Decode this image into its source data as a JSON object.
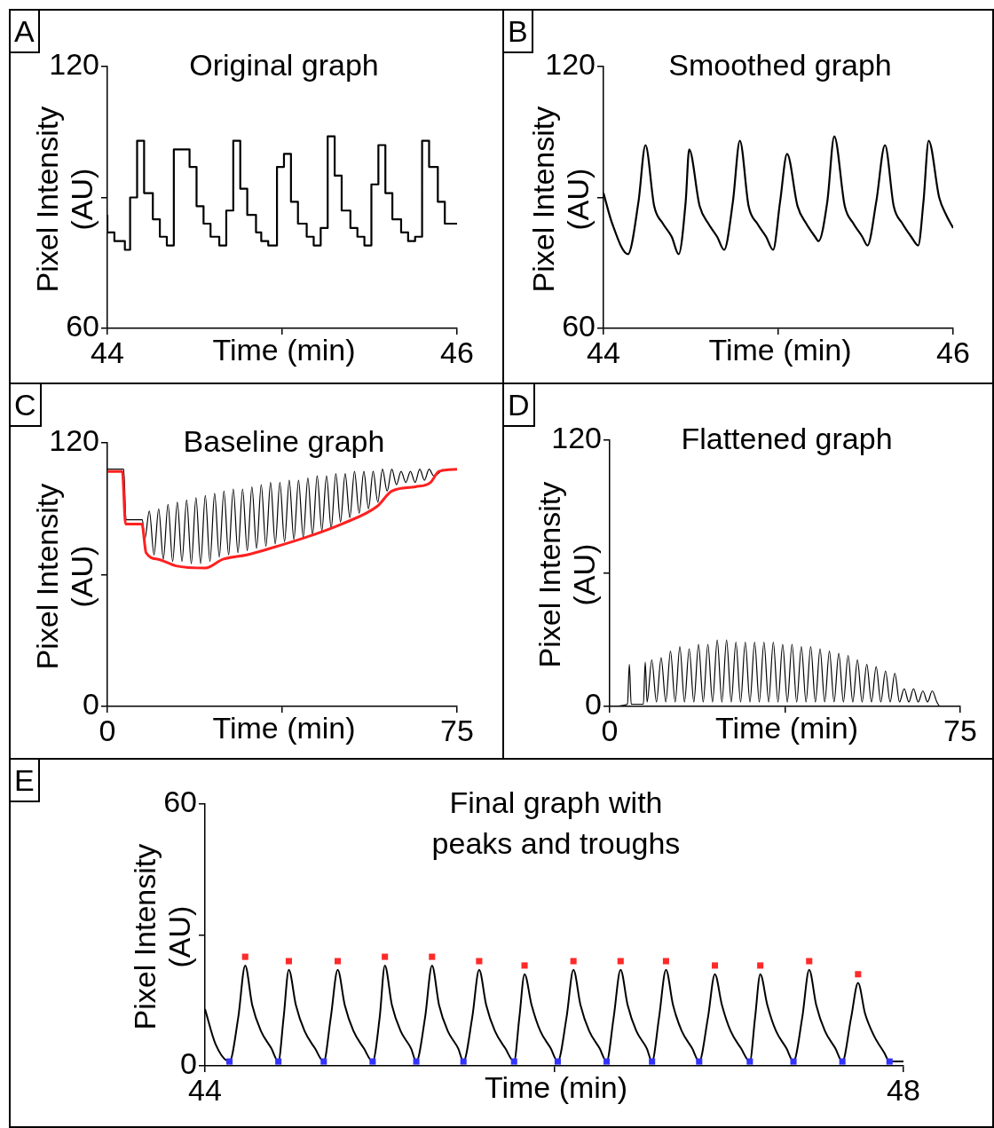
{
  "chart_data": [
    {
      "type": "step",
      "title": "Original graph",
      "xlabel": "Time (min)",
      "ylabel": "Pixel Intensity (AU)",
      "annotations": [
        "A"
      ],
      "xlim": [
        44,
        46
      ],
      "ylim": [
        60,
        120
      ],
      "xticks": [
        44,
        {
          "value": 45,
          "label": null
        },
        46
      ],
      "yticks": [
        60,
        {
          "value": 90,
          "label": null
        },
        120
      ],
      "x": [
        44.0,
        44.04,
        44.1,
        44.13,
        44.17,
        44.21,
        44.26,
        44.3,
        44.34,
        44.38,
        44.47,
        44.51,
        44.55,
        44.59,
        44.64,
        44.68,
        44.72,
        44.76,
        44.8,
        44.85,
        44.88,
        44.92,
        44.97,
        45.01,
        45.05,
        45.09,
        45.14,
        45.18,
        45.22,
        45.26,
        45.3,
        45.34,
        45.39,
        45.43,
        45.47,
        45.51,
        45.55,
        45.59,
        45.63,
        45.68,
        45.72,
        45.76,
        45.8,
        45.84,
        45.89,
        45.93,
        45.96,
        46.0
      ],
      "series": [
        {
          "color": "#000000",
          "values": [
            86,
            82,
            80,
            78,
            90,
            103,
            91,
            85,
            81,
            79,
            101,
            97,
            88,
            84,
            81,
            79,
            87,
            103,
            92,
            86,
            82,
            80,
            79,
            97,
            100,
            89,
            84,
            81,
            79,
            83,
            104,
            95,
            87,
            83,
            81,
            79,
            93,
            102,
            91,
            85,
            82,
            80,
            81,
            103,
            97,
            89,
            84,
            84
          ]
        }
      ]
    },
    {
      "type": "line",
      "title": "Smoothed graph",
      "xlabel": "Time (min)",
      "ylabel": "Pixel Intensity (AU)",
      "annotations": [
        "B"
      ],
      "xlim": [
        44,
        46
      ],
      "ylim": [
        60,
        120
      ],
      "xticks": [
        44,
        {
          "value": 45,
          "label": null
        },
        46
      ],
      "yticks": [
        60,
        {
          "value": 90,
          "label": null
        },
        120
      ],
      "x": [
        44.0,
        44.05,
        44.14,
        44.2,
        44.24,
        44.29,
        44.34,
        44.39,
        44.43,
        44.47,
        44.49,
        44.55,
        44.6,
        44.65,
        44.69,
        44.74,
        44.78,
        44.83,
        44.88,
        44.93,
        44.97,
        45.01,
        45.05,
        45.11,
        45.16,
        45.21,
        45.23,
        45.28,
        45.32,
        45.38,
        45.43,
        45.48,
        45.51,
        45.56,
        45.61,
        45.66,
        45.71,
        45.76,
        45.8,
        45.83,
        45.86,
        45.92,
        45.96,
        46.0
      ],
      "series": [
        {
          "color": "#000000",
          "values": [
            91,
            84,
            77,
            89,
            102,
            88,
            84,
            81,
            77,
            89,
            101,
            88,
            84,
            81,
            78,
            89,
            103,
            88,
            84,
            81,
            78,
            89,
            100,
            88,
            84,
            81,
            80,
            89,
            104,
            88,
            84,
            81,
            79,
            89,
            102,
            88,
            84,
            81,
            79,
            89,
            103,
            90,
            86,
            83
          ]
        }
      ]
    },
    {
      "type": "line",
      "title": "Baseline graph",
      "xlabel": "Time (min)",
      "ylabel": "Pixel Intensity (AU)",
      "annotations": [
        "C"
      ],
      "xlim": [
        0,
        75
      ],
      "ylim": [
        0,
        120
      ],
      "xticks": [
        0,
        {
          "value": 37.5,
          "label": null
        },
        75
      ],
      "yticks": [
        0,
        {
          "value": 60,
          "label": null
        },
        120
      ],
      "series": [
        {
          "color": "#000000",
          "x": [
            0,
            3.5,
            4,
            7.5,
            8,
            9,
            10,
            11,
            12,
            13,
            14,
            15,
            16,
            17,
            18,
            19,
            20,
            21,
            22,
            23,
            24,
            25,
            26,
            27,
            28,
            29,
            30,
            31,
            32,
            33,
            34,
            35,
            36,
            37,
            38,
            39,
            40,
            41,
            42,
            43,
            44,
            45,
            46,
            47,
            48,
            49,
            50,
            51,
            52,
            53,
            54,
            55,
            56,
            57,
            58,
            59,
            60,
            61,
            62,
            63,
            64,
            65,
            66,
            67,
            68,
            69,
            70,
            72
          ],
          "values": [
            108,
            108,
            85,
            85,
            76,
            89,
            69,
            90,
            67,
            92,
            66,
            93,
            66,
            94,
            65,
            95,
            65,
            96,
            66,
            97,
            68,
            98,
            69,
            99,
            70,
            99,
            71,
            100,
            72,
            101,
            73,
            102,
            74,
            102,
            75,
            103,
            76,
            103,
            77,
            104,
            78,
            105,
            80,
            105,
            81,
            106,
            84,
            106,
            86,
            107,
            88,
            107,
            90,
            107,
            93,
            108,
            98,
            108,
            101,
            107,
            102,
            107,
            102,
            108,
            103,
            108,
            105,
            108
          ]
        },
        {
          "color": "#ff2020",
          "x": [
            0,
            3.2,
            3.9,
            7.4,
            8.3,
            10.9,
            14.7,
            21,
            24.8,
            29.9,
            35,
            42.6,
            50.2,
            57.8,
            61,
            66.1,
            69.3,
            71.1,
            75
          ],
          "values": [
            107,
            107,
            83,
            83,
            70,
            67,
            64,
            63,
            67,
            69,
            72,
            77,
            83,
            91,
            98,
            100,
            102,
            107,
            108
          ]
        }
      ]
    },
    {
      "type": "line",
      "title": "Flattened graph",
      "xlabel": "Time (min)",
      "ylabel": "Pixel Intensity (AU)",
      "annotations": [
        "D"
      ],
      "xlim": [
        0,
        75
      ],
      "ylim": [
        0,
        120
      ],
      "xticks": [
        0,
        {
          "value": 37.5,
          "label": null
        },
        75
      ],
      "yticks": [
        0,
        {
          "value": 60,
          "label": null
        },
        120
      ],
      "series": [
        {
          "color": "#000000",
          "x": [
            0,
            3.8,
            4.2,
            4.6,
            7.2,
            7.6,
            8,
            9,
            10,
            11,
            12,
            13,
            14,
            15,
            16,
            17,
            18,
            19,
            20,
            21,
            22,
            23,
            24,
            25,
            26,
            27,
            28,
            29,
            30,
            31,
            32,
            33,
            34,
            35,
            36,
            37,
            38,
            39,
            40,
            41,
            42,
            43,
            44,
            45,
            46,
            47,
            48,
            49,
            50,
            51,
            52,
            53,
            54,
            55,
            56,
            57,
            58,
            59,
            60,
            61,
            62,
            63,
            64,
            65,
            66,
            67,
            68,
            69,
            70,
            70.7,
            75
          ],
          "values": [
            0,
            1,
            19,
            1,
            1,
            20,
            2,
            21,
            2,
            22,
            2,
            25,
            2,
            27,
            2,
            26,
            2,
            28,
            2,
            28,
            2,
            30,
            2,
            30,
            2,
            29,
            2,
            29,
            2,
            29,
            2,
            29,
            2,
            29,
            2,
            28,
            2,
            28,
            2,
            27,
            2,
            27,
            2,
            26,
            2,
            25,
            2,
            24,
            2,
            23,
            2,
            21,
            2,
            19,
            2,
            18,
            2,
            16,
            2,
            15,
            2,
            8,
            2,
            8,
            2,
            7,
            2,
            7,
            2,
            0,
            0
          ]
        }
      ]
    },
    {
      "type": "line",
      "title": "Final graph with peaks and troughs",
      "xlabel": "Time (min)",
      "ylabel": "Pixel Intensity (AU)",
      "annotations": [
        "E"
      ],
      "xlim": [
        44,
        48
      ],
      "ylim": [
        0,
        60
      ],
      "xticks": [
        44,
        {
          "value": 46,
          "label": null
        },
        48
      ],
      "yticks": [
        0,
        {
          "value": 30,
          "label": null
        },
        60
      ],
      "series": [
        {
          "color": "#000000",
          "x": [
            44.0,
            44.06,
            44.14,
            44.19,
            44.23,
            44.27,
            44.32,
            44.38,
            44.42,
            44.45,
            44.48,
            44.52,
            44.57,
            44.63,
            44.68,
            44.72,
            44.76,
            44.8,
            44.85,
            44.91,
            44.96,
            45.0,
            45.03,
            45.07,
            45.12,
            45.18,
            45.21,
            45.26,
            45.3,
            45.34,
            45.39,
            45.45,
            45.48,
            45.53,
            45.57,
            45.61,
            45.66,
            45.72,
            45.77,
            45.8,
            45.83,
            45.87,
            45.92,
            45.98,
            46.02,
            46.07,
            46.11,
            46.15,
            46.2,
            46.26,
            46.3,
            46.34,
            46.38,
            46.42,
            46.47,
            46.53,
            46.56,
            46.6,
            46.64,
            46.68,
            46.73,
            46.79,
            46.83,
            46.88,
            46.92,
            46.96,
            47.01,
            47.07,
            47.12,
            47.15,
            47.18,
            47.22,
            47.27,
            47.33,
            47.37,
            47.42,
            47.46,
            47.5,
            47.55,
            47.61,
            47.65,
            47.7,
            47.74,
            47.78,
            47.83,
            47.89,
            47.92,
            48.0
          ],
          "values": [
            13,
            5,
            1,
            11,
            23,
            14,
            8,
            4,
            1,
            11,
            22,
            14,
            8,
            4,
            1,
            11,
            22,
            14,
            8,
            4,
            1,
            11,
            23,
            14,
            8,
            4,
            1,
            11,
            23,
            14,
            8,
            4,
            1,
            11,
            22,
            14,
            8,
            4,
            1,
            11,
            21,
            14,
            8,
            4,
            1,
            11,
            22,
            14,
            8,
            4,
            1,
            11,
            22,
            14,
            8,
            4,
            1,
            11,
            22,
            14,
            8,
            4,
            1,
            11,
            21,
            14,
            8,
            4,
            1,
            11,
            21,
            14,
            8,
            4,
            1,
            11,
            22,
            14,
            8,
            4,
            1,
            11,
            19,
            12,
            7,
            3,
            1,
            1
          ]
        },
        {
          "type": "scatter",
          "marker": "square",
          "color": "#ff2a2a",
          "x": [
            44.23,
            44.48,
            44.76,
            45.03,
            45.3,
            45.57,
            45.83,
            46.11,
            46.38,
            46.64,
            46.92,
            47.18,
            47.46,
            47.74
          ],
          "values": [
            25,
            24,
            24,
            25,
            25,
            24,
            23,
            24,
            24,
            24,
            23,
            23,
            24,
            21
          ]
        },
        {
          "type": "scatter",
          "marker": "square",
          "color": "#3333ff",
          "x": [
            44.14,
            44.42,
            44.68,
            44.96,
            45.21,
            45.48,
            45.77,
            46.02,
            46.3,
            46.56,
            46.83,
            47.12,
            47.37,
            47.65,
            47.92
          ],
          "values": [
            1,
            1,
            1,
            1,
            1,
            1,
            1,
            1,
            1,
            1,
            1,
            1,
            1,
            1,
            1
          ]
        }
      ]
    }
  ]
}
